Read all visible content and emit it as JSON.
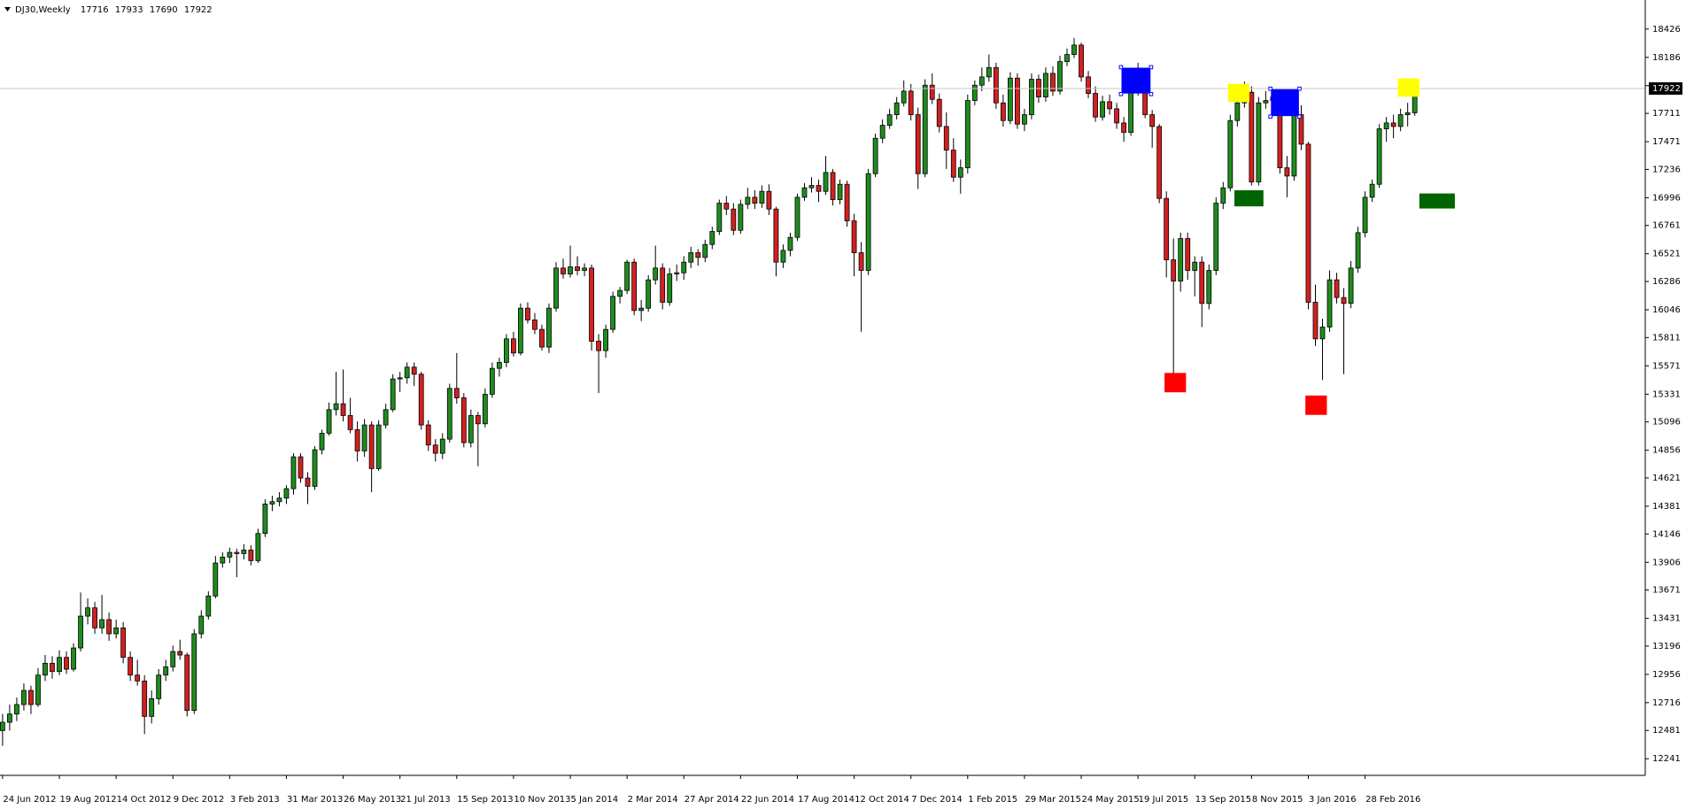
{
  "chart_data": {
    "type": "candlestick",
    "title": "DJ30,Weekly",
    "up_color": "#1e8c1e",
    "down_color": "#d42020",
    "wick_color": "#000000",
    "ylim": [
      12130,
      18630
    ],
    "yticks": [
      12241,
      12481,
      12716,
      12956,
      13196,
      13431,
      13671,
      13906,
      14146,
      14381,
      14621,
      14856,
      15096,
      15331,
      15571,
      15811,
      16046,
      16286,
      16521,
      16761,
      16996,
      17236,
      17471,
      17711,
      17946,
      18186,
      18426
    ],
    "categories": [
      "24 Jun 2012",
      null,
      null,
      null,
      null,
      null,
      null,
      null,
      "19 Aug 2012",
      null,
      null,
      null,
      null,
      null,
      null,
      null,
      "14 Oct 2012",
      null,
      null,
      null,
      null,
      null,
      null,
      null,
      "9 Dec 2012",
      null,
      null,
      null,
      null,
      null,
      null,
      null,
      "3 Feb 2013",
      null,
      null,
      null,
      null,
      null,
      null,
      null,
      "31 Mar 2013",
      null,
      null,
      null,
      null,
      null,
      null,
      null,
      "26 May 2013",
      null,
      null,
      null,
      null,
      null,
      null,
      null,
      "21 Jul 2013",
      null,
      null,
      null,
      null,
      null,
      null,
      null,
      "15 Sep 2013",
      null,
      null,
      null,
      null,
      null,
      null,
      null,
      "10 Nov 2013",
      null,
      null,
      null,
      null,
      null,
      null,
      null,
      "5 Jan 2014",
      null,
      null,
      null,
      null,
      null,
      null,
      null,
      "2 Mar 2014",
      null,
      null,
      null,
      null,
      null,
      null,
      null,
      "27 Apr 2014",
      null,
      null,
      null,
      null,
      null,
      null,
      null,
      "22 Jun 2014",
      null,
      null,
      null,
      null,
      null,
      null,
      null,
      "17 Aug 2014",
      null,
      null,
      null,
      null,
      null,
      null,
      null,
      "12 Oct 2014",
      null,
      null,
      null,
      null,
      null,
      null,
      null,
      "7 Dec 2014",
      null,
      null,
      null,
      null,
      null,
      null,
      null,
      "1 Feb 2015",
      null,
      null,
      null,
      null,
      null,
      null,
      null,
      "29 Mar 2015",
      null,
      null,
      null,
      null,
      null,
      null,
      null,
      "24 May 2015",
      null,
      null,
      null,
      null,
      null,
      null,
      null,
      "19 Jul 2015",
      null,
      null,
      null,
      null,
      null,
      null,
      null,
      "13 Sep 2015",
      null,
      null,
      null,
      null,
      null,
      null,
      null,
      "8 Nov 2015",
      null,
      null,
      null,
      null,
      null,
      null,
      null,
      "3 Jan 2016",
      null,
      null,
      null,
      null,
      null,
      null,
      null,
      "28 Feb 2016",
      null,
      null,
      null,
      null,
      null,
      null,
      null
    ],
    "ohlc": [
      [
        12480,
        12620,
        12350,
        12550
      ],
      [
        12550,
        12700,
        12480,
        12620
      ],
      [
        12620,
        12760,
        12560,
        12700
      ],
      [
        12700,
        12880,
        12650,
        12820
      ],
      [
        12820,
        12860,
        12620,
        12700
      ],
      [
        12700,
        13010,
        12680,
        12950
      ],
      [
        12950,
        13120,
        12900,
        13050
      ],
      [
        13050,
        13110,
        12920,
        12980
      ],
      [
        12980,
        13160,
        12950,
        13100
      ],
      [
        13100,
        13150,
        12960,
        13000
      ],
      [
        13000,
        13220,
        12980,
        13180
      ],
      [
        13180,
        13650,
        13150,
        13450
      ],
      [
        13450,
        13600,
        13380,
        13520
      ],
      [
        13520,
        13570,
        13300,
        13350
      ],
      [
        13350,
        13630,
        13300,
        13420
      ],
      [
        13420,
        13480,
        13240,
        13300
      ],
      [
        13300,
        13420,
        13260,
        13350
      ],
      [
        13350,
        13400,
        13050,
        13100
      ],
      [
        13100,
        13150,
        12900,
        12950
      ],
      [
        12950,
        13080,
        12860,
        12900
      ],
      [
        12900,
        12950,
        12450,
        12600
      ],
      [
        12600,
        12820,
        12540,
        12750
      ],
      [
        12750,
        13000,
        12700,
        12950
      ],
      [
        12950,
        13080,
        12900,
        13020
      ],
      [
        13020,
        13200,
        12980,
        13150
      ],
      [
        13150,
        13250,
        13080,
        13120
      ],
      [
        13120,
        13140,
        12600,
        12650
      ],
      [
        12650,
        13340,
        12620,
        13300
      ],
      [
        13300,
        13500,
        13260,
        13450
      ],
      [
        13450,
        13660,
        13420,
        13620
      ],
      [
        13620,
        13960,
        13600,
        13900
      ],
      [
        13900,
        13990,
        13860,
        13950
      ],
      [
        13950,
        14030,
        13900,
        13990
      ],
      [
        13990,
        14020,
        13780,
        13980
      ],
      [
        13980,
        14060,
        13930,
        14010
      ],
      [
        14010,
        14050,
        13880,
        13920
      ],
      [
        13920,
        14190,
        13900,
        14150
      ],
      [
        14150,
        14440,
        14120,
        14400
      ],
      [
        14400,
        14470,
        14340,
        14420
      ],
      [
        14420,
        14500,
        14380,
        14450
      ],
      [
        14450,
        14560,
        14400,
        14530
      ],
      [
        14530,
        14830,
        14480,
        14800
      ],
      [
        14800,
        14830,
        14580,
        14620
      ],
      [
        14620,
        14670,
        14400,
        14550
      ],
      [
        14550,
        14890,
        14520,
        14860
      ],
      [
        14860,
        15030,
        14820,
        15000
      ],
      [
        15000,
        15260,
        14980,
        15200
      ],
      [
        15200,
        15520,
        15150,
        15250
      ],
      [
        15250,
        15540,
        15100,
        15150
      ],
      [
        15150,
        15300,
        15000,
        15030
      ],
      [
        15030,
        15100,
        14760,
        14850
      ],
      [
        14850,
        15120,
        14800,
        15070
      ],
      [
        15070,
        15100,
        14500,
        14700
      ],
      [
        14700,
        15110,
        14680,
        15070
      ],
      [
        15070,
        15250,
        15040,
        15200
      ],
      [
        15200,
        15500,
        15180,
        15460
      ],
      [
        15460,
        15520,
        15350,
        15470
      ],
      [
        15470,
        15600,
        15420,
        15560
      ],
      [
        15560,
        15600,
        15400,
        15500
      ],
      [
        15500,
        15520,
        15030,
        15070
      ],
      [
        15070,
        15110,
        14850,
        14900
      ],
      [
        14900,
        14950,
        14760,
        14830
      ],
      [
        14830,
        15000,
        14780,
        14950
      ],
      [
        14950,
        15420,
        14920,
        15380
      ],
      [
        15380,
        15680,
        15250,
        15300
      ],
      [
        15300,
        15340,
        14880,
        14920
      ],
      [
        14920,
        15200,
        14880,
        15150
      ],
      [
        15150,
        15180,
        14720,
        15080
      ],
      [
        15080,
        15380,
        15050,
        15330
      ],
      [
        15330,
        15600,
        15300,
        15550
      ],
      [
        15550,
        15640,
        15480,
        15600
      ],
      [
        15600,
        15840,
        15560,
        15800
      ],
      [
        15800,
        15860,
        15650,
        15680
      ],
      [
        15680,
        16100,
        15660,
        16060
      ],
      [
        16060,
        16110,
        15930,
        15960
      ],
      [
        15960,
        16020,
        15840,
        15880
      ],
      [
        15880,
        15920,
        15700,
        15730
      ],
      [
        15730,
        16100,
        15680,
        16060
      ],
      [
        16060,
        16450,
        16030,
        16400
      ],
      [
        16400,
        16480,
        16310,
        16350
      ],
      [
        16350,
        16590,
        16320,
        16410
      ],
      [
        16410,
        16500,
        16340,
        16380
      ],
      [
        16380,
        16440,
        16330,
        16400
      ],
      [
        16400,
        16430,
        15700,
        15780
      ],
      [
        15780,
        15840,
        15340,
        15700
      ],
      [
        15700,
        15920,
        15640,
        15880
      ],
      [
        15880,
        16200,
        15850,
        16160
      ],
      [
        16160,
        16240,
        16100,
        16210
      ],
      [
        16210,
        16470,
        16180,
        16450
      ],
      [
        16450,
        16480,
        16000,
        16040
      ],
      [
        16040,
        16130,
        15950,
        16060
      ],
      [
        16060,
        16340,
        16030,
        16300
      ],
      [
        16300,
        16590,
        16260,
        16400
      ],
      [
        16400,
        16440,
        16050,
        16110
      ],
      [
        16110,
        16400,
        16080,
        16350
      ],
      [
        16350,
        16430,
        16290,
        16360
      ],
      [
        16360,
        16500,
        16300,
        16450
      ],
      [
        16450,
        16580,
        16400,
        16530
      ],
      [
        16530,
        16560,
        16420,
        16490
      ],
      [
        16490,
        16640,
        16450,
        16600
      ],
      [
        16600,
        16750,
        16560,
        16710
      ],
      [
        16710,
        16980,
        16680,
        16950
      ],
      [
        16950,
        17010,
        16850,
        16900
      ],
      [
        16900,
        16950,
        16680,
        16720
      ],
      [
        16720,
        16980,
        16690,
        16940
      ],
      [
        16940,
        17080,
        16900,
        17000
      ],
      [
        17000,
        17060,
        16900,
        16950
      ],
      [
        16950,
        17100,
        16910,
        17050
      ],
      [
        17050,
        17110,
        16850,
        16900
      ],
      [
        16900,
        16920,
        16330,
        16450
      ],
      [
        16450,
        16600,
        16400,
        16550
      ],
      [
        16550,
        16700,
        16500,
        16660
      ],
      [
        16660,
        17030,
        16630,
        17000
      ],
      [
        17000,
        17120,
        16970,
        17080
      ],
      [
        17080,
        17170,
        17040,
        17100
      ],
      [
        17100,
        17150,
        16960,
        17050
      ],
      [
        17050,
        17350,
        17020,
        17210
      ],
      [
        17210,
        17240,
        16930,
        16980
      ],
      [
        16980,
        17150,
        16940,
        17110
      ],
      [
        17110,
        17140,
        16750,
        16800
      ],
      [
        16800,
        16860,
        16330,
        16530
      ],
      [
        16530,
        16620,
        15860,
        16380
      ],
      [
        16380,
        17240,
        16340,
        17200
      ],
      [
        17200,
        17540,
        17170,
        17500
      ],
      [
        17500,
        17660,
        17460,
        17610
      ],
      [
        17610,
        17750,
        17580,
        17700
      ],
      [
        17700,
        17850,
        17660,
        17800
      ],
      [
        17800,
        17990,
        17770,
        17900
      ],
      [
        17900,
        17960,
        17650,
        17700
      ],
      [
        17700,
        17760,
        17070,
        17200
      ],
      [
        17200,
        18000,
        17170,
        17950
      ],
      [
        17950,
        18050,
        17790,
        17830
      ],
      [
        17830,
        17880,
        17550,
        17600
      ],
      [
        17600,
        17720,
        17240,
        17400
      ],
      [
        17400,
        17500,
        17130,
        17170
      ],
      [
        17170,
        17320,
        17030,
        17250
      ],
      [
        17250,
        17870,
        17200,
        17820
      ],
      [
        17820,
        17990,
        17780,
        17950
      ],
      [
        17950,
        18100,
        17900,
        18020
      ],
      [
        18020,
        18210,
        17980,
        18100
      ],
      [
        18100,
        18140,
        17750,
        17800
      ],
      [
        17800,
        17870,
        17600,
        17650
      ],
      [
        17650,
        18060,
        17620,
        18010
      ],
      [
        18010,
        18050,
        17580,
        17620
      ],
      [
        17620,
        17750,
        17560,
        17700
      ],
      [
        17700,
        18050,
        17660,
        18000
      ],
      [
        18000,
        18040,
        17800,
        17850
      ],
      [
        17850,
        18100,
        17810,
        18050
      ],
      [
        18050,
        18110,
        17860,
        17900
      ],
      [
        17900,
        18200,
        17870,
        18150
      ],
      [
        18150,
        18260,
        18110,
        18210
      ],
      [
        18210,
        18350,
        18180,
        18290
      ],
      [
        18290,
        18310,
        17980,
        18020
      ],
      [
        18020,
        18070,
        17840,
        17880
      ],
      [
        17880,
        17940,
        17640,
        17680
      ],
      [
        17680,
        17860,
        17650,
        17810
      ],
      [
        17810,
        17870,
        17700,
        17750
      ],
      [
        17750,
        17800,
        17580,
        17630
      ],
      [
        17630,
        17680,
        17470,
        17550
      ],
      [
        17550,
        17950,
        17520,
        17900
      ],
      [
        17900,
        18140,
        17860,
        18000
      ],
      [
        18000,
        18050,
        17670,
        17700
      ],
      [
        17700,
        17740,
        17420,
        17600
      ],
      [
        17600,
        17620,
        16950,
        16990
      ],
      [
        16990,
        17050,
        16320,
        16470
      ],
      [
        16470,
        16650,
        15370,
        16290
      ],
      [
        16290,
        16700,
        16200,
        16650
      ],
      [
        16650,
        16700,
        16300,
        16380
      ],
      [
        16380,
        16500,
        16160,
        16450
      ],
      [
        16450,
        16500,
        15900,
        16100
      ],
      [
        16100,
        16430,
        16050,
        16380
      ],
      [
        16380,
        17000,
        16340,
        16950
      ],
      [
        16950,
        17130,
        16900,
        17080
      ],
      [
        17080,
        17700,
        17050,
        17650
      ],
      [
        17650,
        17860,
        17600,
        17800
      ],
      [
        17800,
        17980,
        17760,
        17890
      ],
      [
        17890,
        17940,
        17100,
        17130
      ],
      [
        17130,
        17850,
        17100,
        17800
      ],
      [
        17800,
        17900,
        17750,
        17820
      ],
      [
        17820,
        17900,
        17700,
        17850
      ],
      [
        17850,
        17880,
        17200,
        17250
      ],
      [
        17250,
        17350,
        17000,
        17180
      ],
      [
        17180,
        17750,
        17140,
        17700
      ],
      [
        17700,
        17780,
        17400,
        17450
      ],
      [
        17450,
        17470,
        16050,
        16110
      ],
      [
        16110,
        16260,
        15740,
        15800
      ],
      [
        15800,
        15970,
        15450,
        15900
      ],
      [
        15900,
        16380,
        15860,
        16300
      ],
      [
        16300,
        16360,
        16100,
        16150
      ],
      [
        16150,
        16230,
        15500,
        16100
      ],
      [
        16100,
        16460,
        16060,
        16400
      ],
      [
        16400,
        16750,
        16360,
        16700
      ],
      [
        16700,
        17050,
        16660,
        17000
      ],
      [
        17000,
        17150,
        16960,
        17110
      ],
      [
        17110,
        17620,
        17080,
        17580
      ],
      [
        17580,
        17680,
        17470,
        17630
      ],
      [
        17630,
        17700,
        17500,
        17600
      ],
      [
        17600,
        17750,
        17560,
        17700
      ],
      [
        17700,
        17800,
        17600,
        17716
      ],
      [
        17716,
        17933,
        17690,
        17922
      ]
    ]
  }
}
